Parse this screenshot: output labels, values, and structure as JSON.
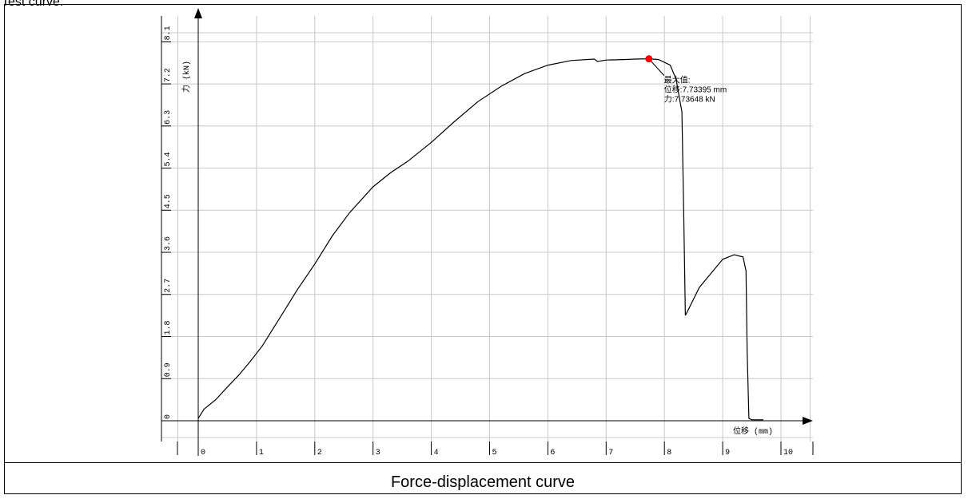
{
  "page": {
    "top_label": "Test curve:",
    "caption": "Force-displacement curve"
  },
  "chart_data": {
    "type": "line",
    "title": "",
    "xlabel": "位移 (mm)",
    "ylabel": "力 (kN)",
    "xlim": [
      -0.3,
      10.5
    ],
    "ylim": [
      -0.3,
      8.4
    ],
    "xticks": [
      "0",
      "1",
      "2",
      "3",
      "4",
      "5",
      "6",
      "7",
      "8",
      "9",
      "10"
    ],
    "yticks": [
      "0",
      "0.9",
      "1.8",
      "2.7",
      "3.6",
      "4.5",
      "5.4",
      "6.3",
      "7.2",
      "8.1"
    ],
    "grid": true,
    "colors": {
      "line": "#000000",
      "grid": "#c8c8c8",
      "marker": "#ff0000"
    },
    "series": [
      {
        "x": [
          0,
          0.1,
          0.3,
          0.5,
          0.7,
          0.9,
          1.1,
          1.3,
          1.5,
          1.7,
          2.0,
          2.3,
          2.6,
          3.0,
          3.3,
          3.6,
          4.0,
          4.4,
          4.8,
          5.2,
          5.6,
          6.0,
          6.4,
          6.8,
          6.85,
          7.0,
          7.3,
          7.5,
          7.73395,
          7.9,
          8.1,
          8.2,
          8.3,
          8.33,
          8.36,
          8.4,
          8.6,
          8.8,
          9.0,
          9.2,
          9.35,
          9.4,
          9.42,
          9.45,
          9.5,
          9.7
        ],
        "y": [
          0.05,
          0.25,
          0.45,
          0.72,
          0.98,
          1.28,
          1.6,
          2.0,
          2.4,
          2.8,
          3.35,
          3.95,
          4.45,
          5.0,
          5.3,
          5.55,
          5.95,
          6.4,
          6.82,
          7.15,
          7.42,
          7.6,
          7.7,
          7.73,
          7.68,
          7.71,
          7.72,
          7.73,
          7.73648,
          7.72,
          7.6,
          7.3,
          6.6,
          4.5,
          2.25,
          2.35,
          2.85,
          3.15,
          3.45,
          3.55,
          3.5,
          3.2,
          1.5,
          0.05,
          0.02,
          0.02
        ]
      }
    ],
    "max_point": {
      "x": 7.73395,
      "y": 7.73648
    },
    "annotation": {
      "heading": "最大值:",
      "displacement": "位移:7.73395 mm",
      "force": "力:7.73648 kN"
    }
  }
}
